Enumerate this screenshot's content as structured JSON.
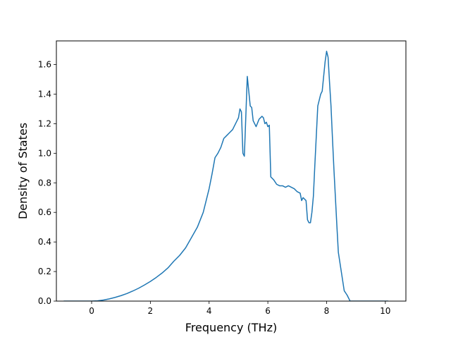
{
  "chart_data": {
    "type": "line",
    "title": "",
    "xlabel": "Frequency (THz)",
    "ylabel": "Density of States",
    "xlim": [
      -1.2,
      10.7
    ],
    "ylim": [
      0.0,
      1.76
    ],
    "xticks": [
      0,
      2,
      4,
      6,
      8,
      10
    ],
    "xtick_labels": [
      "0",
      "2",
      "4",
      "6",
      "8",
      "10"
    ],
    "yticks": [
      0.0,
      0.2,
      0.4,
      0.6,
      0.8,
      1.0,
      1.2,
      1.4,
      1.6
    ],
    "ytick_labels": [
      "0.0",
      "0.2",
      "0.4",
      "0.6",
      "0.8",
      "1.0",
      "1.2",
      "1.4",
      "1.6"
    ],
    "grid": false,
    "legend": false,
    "series": [
      {
        "color": "#1f77b4",
        "x": [
          -0.95,
          -0.5,
          0.0,
          0.2,
          0.4,
          0.6,
          0.8,
          1.0,
          1.2,
          1.4,
          1.6,
          1.8,
          2.0,
          2.2,
          2.4,
          2.6,
          2.8,
          3.0,
          3.2,
          3.4,
          3.6,
          3.7,
          3.8,
          3.9,
          4.0,
          4.1,
          4.2,
          4.3,
          4.4,
          4.5,
          4.6,
          4.7,
          4.8,
          4.85,
          4.9,
          4.95,
          5.0,
          5.05,
          5.1,
          5.15,
          5.2,
          5.25,
          5.3,
          5.4,
          5.45,
          5.5,
          5.6,
          5.7,
          5.8,
          5.85,
          5.9,
          5.95,
          6.0,
          6.05,
          6.1,
          6.2,
          6.3,
          6.4,
          6.5,
          6.6,
          6.7,
          6.8,
          6.9,
          7.0,
          7.1,
          7.15,
          7.2,
          7.3,
          7.35,
          7.4,
          7.45,
          7.5,
          7.55,
          7.6,
          7.7,
          7.8,
          7.85,
          7.9,
          7.95,
          8.0,
          8.05,
          8.1,
          8.15,
          8.2,
          8.25,
          8.3,
          8.35,
          8.4,
          8.5,
          8.6,
          8.7,
          8.8,
          8.9,
          9.0,
          9.1,
          9.2,
          9.3,
          9.5,
          10.1
        ],
        "y": [
          0.0,
          0.0,
          0.0,
          0.002,
          0.007,
          0.015,
          0.025,
          0.037,
          0.051,
          0.068,
          0.087,
          0.109,
          0.133,
          0.16,
          0.19,
          0.225,
          0.27,
          0.31,
          0.36,
          0.43,
          0.5,
          0.55,
          0.6,
          0.68,
          0.76,
          0.86,
          0.97,
          1.0,
          1.04,
          1.1,
          1.12,
          1.14,
          1.16,
          1.18,
          1.2,
          1.22,
          1.24,
          1.3,
          1.28,
          1.0,
          0.98,
          1.25,
          1.52,
          1.32,
          1.31,
          1.22,
          1.18,
          1.23,
          1.25,
          1.24,
          1.2,
          1.21,
          1.18,
          1.19,
          0.84,
          0.82,
          0.79,
          0.78,
          0.78,
          0.77,
          0.78,
          0.77,
          0.76,
          0.74,
          0.73,
          0.68,
          0.7,
          0.68,
          0.55,
          0.53,
          0.53,
          0.6,
          0.71,
          0.92,
          1.32,
          1.4,
          1.42,
          1.52,
          1.62,
          1.69,
          1.65,
          1.48,
          1.32,
          1.1,
          0.89,
          0.7,
          0.51,
          0.33,
          0.2,
          0.07,
          0.04,
          0.0,
          0.0,
          0.0,
          0.0,
          0.0,
          0.0,
          0.0,
          0.0
        ]
      }
    ]
  }
}
